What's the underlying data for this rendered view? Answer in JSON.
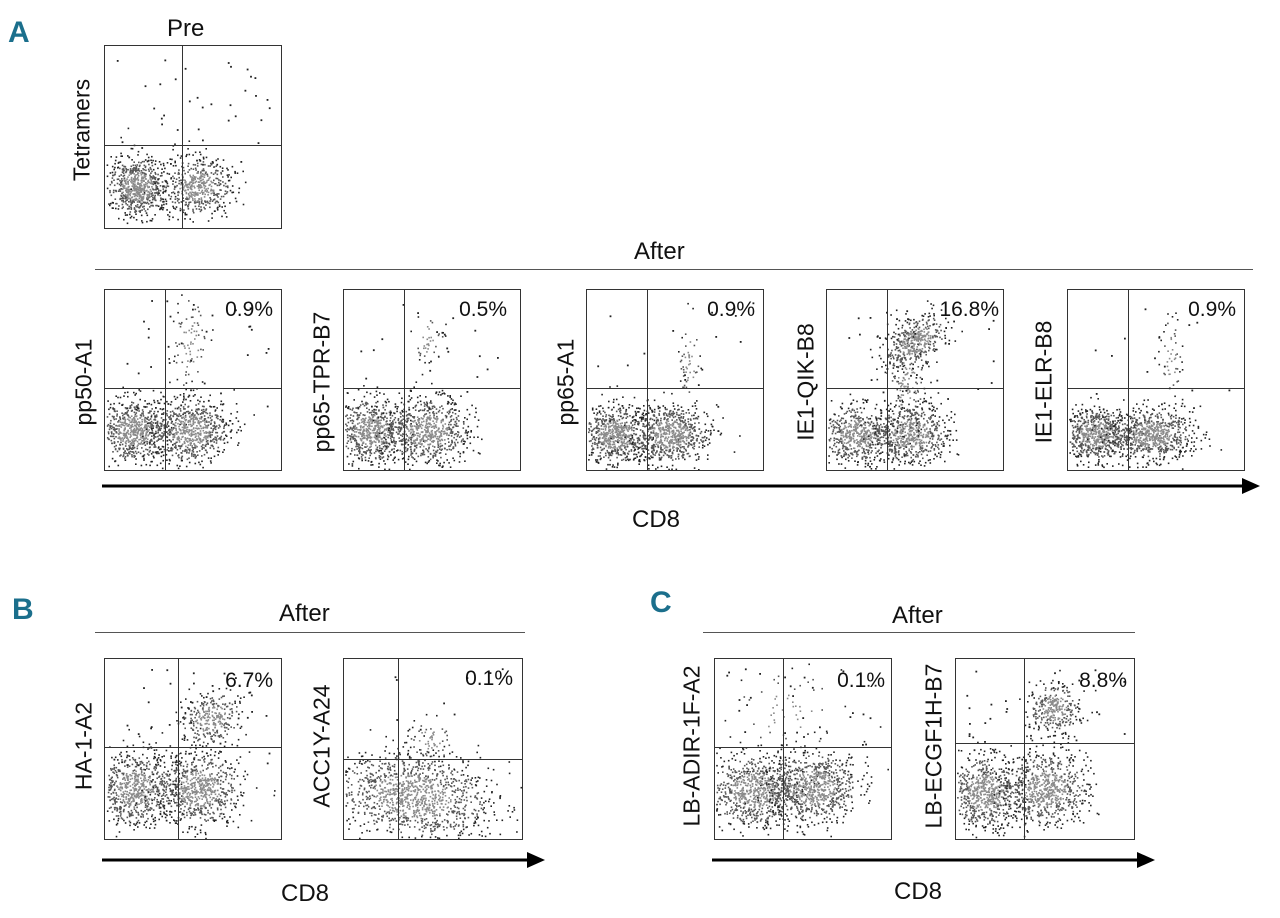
{
  "panels": {
    "A": {
      "letter": "A",
      "pre_label": "Pre",
      "pre_ylabel": "Tetramers",
      "after_label": "After",
      "xlabel": "CD8",
      "plots": [
        {
          "ylabel": "pp50-A1",
          "pct": "0.9%"
        },
        {
          "ylabel": "pp65-TPR-B7",
          "pct": "0.5%"
        },
        {
          "ylabel": "pp65-A1",
          "pct": "0.9%"
        },
        {
          "ylabel": "IE1-QIK-B8",
          "pct": "16.8%"
        },
        {
          "ylabel": "IE1-ELR-B8",
          "pct": "0.9%"
        }
      ]
    },
    "B": {
      "letter": "B",
      "after_label": "After",
      "xlabel": "CD8",
      "plots": [
        {
          "ylabel": "HA-1-A2",
          "pct": "6.7%"
        },
        {
          "ylabel": "ACC1Y-A24",
          "pct": "0.1%"
        }
      ]
    },
    "C": {
      "letter": "C",
      "after_label": "After",
      "xlabel": "CD8",
      "plots": [
        {
          "ylabel": "LB-ADIR-1F-A2",
          "pct": "0.1%"
        },
        {
          "ylabel": "LB-ECGF1H-B7",
          "pct": "8.8%"
        }
      ]
    }
  },
  "colors": {
    "panel_letter": "#1b6f8c",
    "dots": "#222222"
  }
}
